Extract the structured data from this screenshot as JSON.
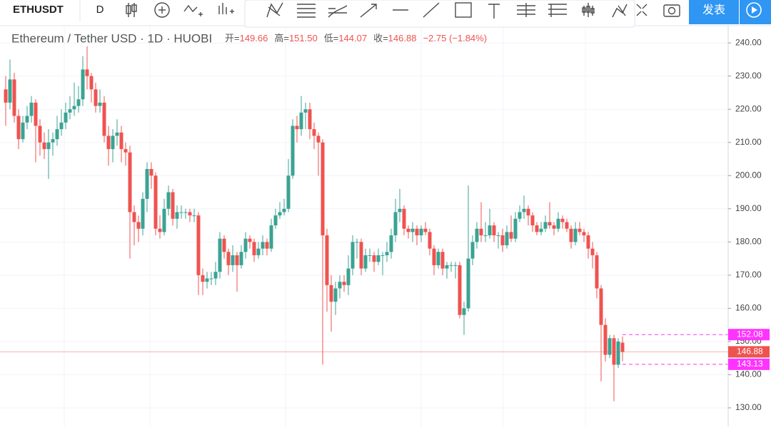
{
  "toolbar": {
    "symbol": "ETHUSDT",
    "interval": "D",
    "publish": "发表"
  },
  "chart_data": {
    "type": "candlestick",
    "legend": {
      "title": "Ethereum / Tether USD · 1D · HUOBI",
      "items": [
        {
          "label": "开=",
          "value": "149.66"
        },
        {
          "label": "高=",
          "value": "151.50"
        },
        {
          "label": "低=",
          "value": "144.07"
        },
        {
          "label": "收=",
          "value": "146.88"
        },
        {
          "label": "",
          "value": "−2.75 (−1.84%)"
        }
      ]
    },
    "up_color": "#3ba393",
    "down_color": "#ef5350",
    "ylim": [
      124.4,
      245.2
    ],
    "yticks": [
      {
        "value": 130,
        "label": "130.00"
      },
      {
        "value": 140,
        "label": "140.00"
      },
      {
        "value": 150,
        "label": "150.00"
      },
      {
        "value": 160,
        "label": "160.00"
      },
      {
        "value": 170,
        "label": "170.00"
      },
      {
        "value": 180,
        "label": "180.00"
      },
      {
        "value": 190,
        "label": "190.00"
      },
      {
        "value": 200,
        "label": "200.00"
      },
      {
        "value": 210,
        "label": "210.00"
      },
      {
        "value": 220,
        "label": "220.00"
      },
      {
        "value": 230,
        "label": "230.00"
      },
      {
        "value": 240,
        "label": "240.00"
      }
    ],
    "grid": true,
    "price_lines": [
      {
        "value": 152.08,
        "color": "#ff33ff",
        "dashed": true
      },
      {
        "value": 146.88,
        "color": "#ef5350",
        "dashed": false
      },
      {
        "value": 143.13,
        "color": "#ff33ff",
        "dashed": true
      }
    ],
    "candles": [
      [
        226,
        230,
        215,
        222
      ],
      [
        222,
        235,
        220,
        229
      ],
      [
        229,
        231,
        216,
        218
      ],
      [
        218,
        220,
        208,
        211
      ],
      [
        211,
        218,
        210,
        216
      ],
      [
        216,
        221,
        214,
        218
      ],
      [
        218,
        224,
        216,
        222
      ],
      [
        222,
        223,
        204,
        215
      ],
      [
        215,
        217,
        206,
        210
      ],
      [
        210,
        213,
        205,
        208
      ],
      [
        208,
        214,
        199,
        210
      ],
      [
        210,
        213,
        206,
        211
      ],
      [
        211,
        218,
        209,
        214
      ],
      [
        214,
        220,
        212,
        216
      ],
      [
        216,
        222,
        214,
        219
      ],
      [
        219,
        224,
        217,
        220
      ],
      [
        220,
        228,
        218,
        221
      ],
      [
        221,
        227,
        219,
        223
      ],
      [
        223,
        236,
        221,
        232
      ],
      [
        232,
        239,
        226,
        230
      ],
      [
        230,
        231,
        222,
        226
      ],
      [
        226,
        228,
        219,
        221
      ],
      [
        221,
        226,
        219,
        222
      ],
      [
        222,
        224,
        210,
        212
      ],
      [
        212,
        215,
        203,
        208
      ],
      [
        208,
        214,
        204,
        212
      ],
      [
        212,
        217,
        209,
        213
      ],
      [
        213,
        215,
        204,
        208
      ],
      [
        208,
        210,
        203,
        207
      ],
      [
        207,
        209,
        175,
        189
      ],
      [
        189,
        191,
        179,
        186
      ],
      [
        186,
        188,
        180,
        184
      ],
      [
        184,
        195,
        182,
        193
      ],
      [
        193,
        204,
        189,
        202
      ],
      [
        202,
        204,
        196,
        200
      ],
      [
        200,
        201,
        182,
        184
      ],
      [
        184,
        188,
        181,
        183
      ],
      [
        183,
        193,
        182,
        190
      ],
      [
        190,
        197,
        188,
        195
      ],
      [
        195,
        196,
        185,
        187
      ],
      [
        187,
        191,
        184,
        189
      ],
      [
        189,
        191,
        187,
        189
      ],
      [
        189,
        190,
        187,
        189
      ],
      [
        189,
        190,
        186,
        188
      ],
      [
        188,
        190,
        186,
        188
      ],
      [
        188,
        189,
        164,
        170
      ],
      [
        170,
        172,
        164,
        168
      ],
      [
        168,
        171,
        166,
        169
      ],
      [
        169,
        171,
        167,
        169
      ],
      [
        169,
        174,
        167,
        171
      ],
      [
        171,
        183,
        169,
        181
      ],
      [
        181,
        182,
        175,
        177
      ],
      [
        177,
        178,
        170,
        173
      ],
      [
        173,
        179,
        171,
        176
      ],
      [
        176,
        177,
        165,
        173
      ],
      [
        173,
        179,
        172,
        177
      ],
      [
        177,
        183,
        175,
        181
      ],
      [
        181,
        182,
        178,
        180
      ],
      [
        180,
        181,
        174,
        176
      ],
      [
        176,
        180,
        175,
        178
      ],
      [
        178,
        182,
        176,
        180
      ],
      [
        180,
        181,
        176,
        178
      ],
      [
        178,
        187,
        177,
        185
      ],
      [
        185,
        190,
        184,
        188
      ],
      [
        188,
        192,
        187,
        189
      ],
      [
        189,
        193,
        188,
        190
      ],
      [
        190,
        205,
        189,
        200
      ],
      [
        200,
        217,
        199,
        215
      ],
      [
        215,
        218,
        210,
        214
      ],
      [
        214,
        224,
        212,
        219
      ],
      [
        219,
        222,
        214,
        220
      ],
      [
        220,
        222,
        211,
        214
      ],
      [
        214,
        216,
        208,
        212
      ],
      [
        212,
        213,
        200,
        210
      ],
      [
        210,
        211,
        143,
        182
      ],
      [
        182,
        184,
        159,
        167
      ],
      [
        167,
        170,
        153,
        162
      ],
      [
        162,
        168,
        158,
        166
      ],
      [
        166,
        170,
        163,
        168
      ],
      [
        168,
        170,
        165,
        167
      ],
      [
        167,
        176,
        164,
        172
      ],
      [
        172,
        182,
        170,
        180
      ],
      [
        180,
        181,
        175,
        180
      ],
      [
        180,
        181,
        170,
        172
      ],
      [
        172,
        178,
        171,
        176
      ],
      [
        176,
        178,
        174,
        176
      ],
      [
        176,
        177,
        171,
        174
      ],
      [
        174,
        178,
        173,
        176
      ],
      [
        176,
        177,
        170,
        176
      ],
      [
        176,
        180,
        174,
        177
      ],
      [
        177,
        184,
        175,
        182
      ],
      [
        182,
        193,
        180,
        189
      ],
      [
        189,
        196,
        186,
        190
      ],
      [
        190,
        191,
        182,
        184
      ],
      [
        184,
        185,
        181,
        183
      ],
      [
        183,
        186,
        180,
        184
      ],
      [
        184,
        185,
        179,
        182
      ],
      [
        182,
        185,
        180,
        184
      ],
      [
        184,
        186,
        182,
        183
      ],
      [
        183,
        184,
        176,
        178
      ],
      [
        178,
        179,
        170,
        173
      ],
      [
        173,
        178,
        172,
        177
      ],
      [
        177,
        178,
        170,
        172
      ],
      [
        172,
        174,
        169,
        173
      ],
      [
        173,
        174,
        171,
        173
      ],
      [
        173,
        174,
        169,
        173
      ],
      [
        173,
        174,
        157,
        158
      ],
      [
        158,
        162,
        152,
        160
      ],
      [
        160,
        197,
        159,
        175
      ],
      [
        175,
        182,
        173,
        180
      ],
      [
        180,
        186,
        178,
        184
      ],
      [
        184,
        192,
        180,
        182
      ],
      [
        182,
        186,
        180,
        182
      ],
      [
        182,
        190,
        181,
        185
      ],
      [
        185,
        186,
        180,
        182
      ],
      [
        182,
        183,
        178,
        182
      ],
      [
        182,
        184,
        177,
        179
      ],
      [
        179,
        185,
        178,
        183
      ],
      [
        183,
        188,
        180,
        181
      ],
      [
        181,
        189,
        180,
        187
      ],
      [
        187,
        191,
        186,
        189
      ],
      [
        189,
        194,
        187,
        190
      ],
      [
        190,
        191,
        185,
        188
      ],
      [
        188,
        189,
        183,
        185
      ],
      [
        185,
        186,
        182,
        183
      ],
      [
        183,
        186,
        182,
        184
      ],
      [
        184,
        188,
        183,
        186
      ],
      [
        186,
        192,
        184,
        185
      ],
      [
        185,
        186,
        182,
        184
      ],
      [
        184,
        189,
        183,
        187
      ],
      [
        187,
        188,
        184,
        186
      ],
      [
        186,
        187,
        183,
        184
      ],
      [
        184,
        185,
        178,
        180
      ],
      [
        180,
        186,
        179,
        184
      ],
      [
        184,
        186,
        182,
        183
      ],
      [
        183,
        184,
        180,
        182
      ],
      [
        182,
        183,
        175,
        178
      ],
      [
        178,
        180,
        172,
        176
      ],
      [
        176,
        177,
        163,
        166
      ],
      [
        166,
        167,
        138,
        155
      ],
      [
        155,
        157,
        144,
        146
      ],
      [
        146,
        152,
        145,
        151
      ],
      [
        151,
        152,
        132,
        143
      ],
      [
        143,
        151,
        142,
        150
      ],
      [
        149.66,
        151.5,
        144.07,
        146.88
      ]
    ]
  }
}
